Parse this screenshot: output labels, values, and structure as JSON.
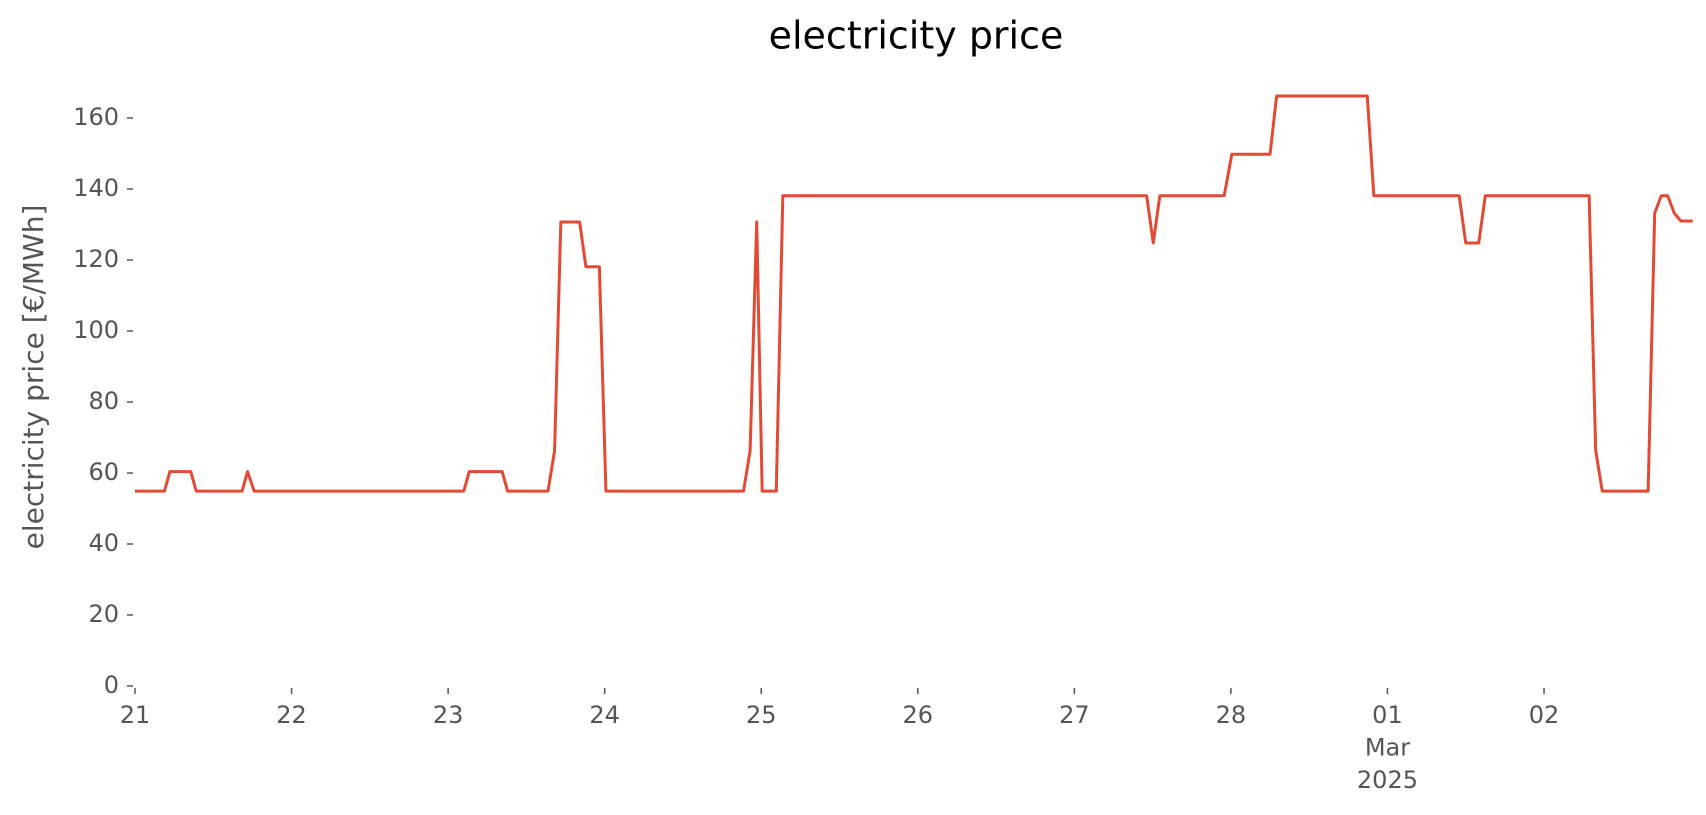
{
  "chart_data": {
    "type": "line",
    "title": "electricity price",
    "y_label": "electricity price [€/MWh]",
    "x": [
      0,
      0.188,
      0.223,
      0.356,
      0.391,
      0.684,
      0.719,
      0.761,
      2.1,
      2.135,
      2.345,
      2.38,
      2.638,
      2.68,
      2.72,
      2.84,
      2.88,
      2.966,
      3.008,
      3.887,
      3.929,
      3.971,
      4.006,
      4.096,
      4.138,
      6.462,
      6.504,
      6.546,
      6.957,
      7.006,
      7.25,
      7.292,
      7.871,
      7.913,
      8.458,
      8.5,
      8.583,
      8.625,
      9.288,
      9.33,
      9.372,
      9.665,
      9.707,
      9.749,
      9.79,
      9.832,
      9.874,
      9.95
    ],
    "values": [
      54.9,
      54.9,
      60.4,
      60.4,
      54.9,
      54.9,
      60.4,
      54.9,
      54.9,
      60.4,
      60.4,
      54.9,
      54.9,
      66.3,
      130.7,
      130.7,
      118.1,
      118.1,
      54.9,
      54.9,
      66.3,
      130.7,
      54.9,
      54.9,
      138.1,
      138.1,
      124.8,
      138.1,
      138.1,
      149.8,
      149.8,
      166.2,
      166.2,
      138.1,
      138.1,
      124.8,
      124.8,
      138.1,
      138.1,
      66.3,
      54.9,
      54.9,
      133.2,
      138.1,
      138.1,
      133.2,
      131,
      131
    ],
    "color": "#e24a33",
    "xlim": [
      0,
      9.958
    ],
    "xticks": [
      {
        "value": 0,
        "label": "21"
      },
      {
        "value": 1,
        "label": "22"
      },
      {
        "value": 2,
        "label": "23"
      },
      {
        "value": 3,
        "label": "24"
      },
      {
        "value": 4,
        "label": "25"
      },
      {
        "value": 5,
        "label": "26"
      },
      {
        "value": 6,
        "label": "27"
      },
      {
        "value": 7,
        "label": "28"
      },
      {
        "value": 8,
        "label": "01\nMar\n2025"
      },
      {
        "value": 9,
        "label": "02"
      }
    ],
    "ylim": [
      0,
      170
    ],
    "yticks": [
      0,
      20,
      40,
      60,
      80,
      100,
      120,
      140,
      160
    ],
    "grid": false
  }
}
